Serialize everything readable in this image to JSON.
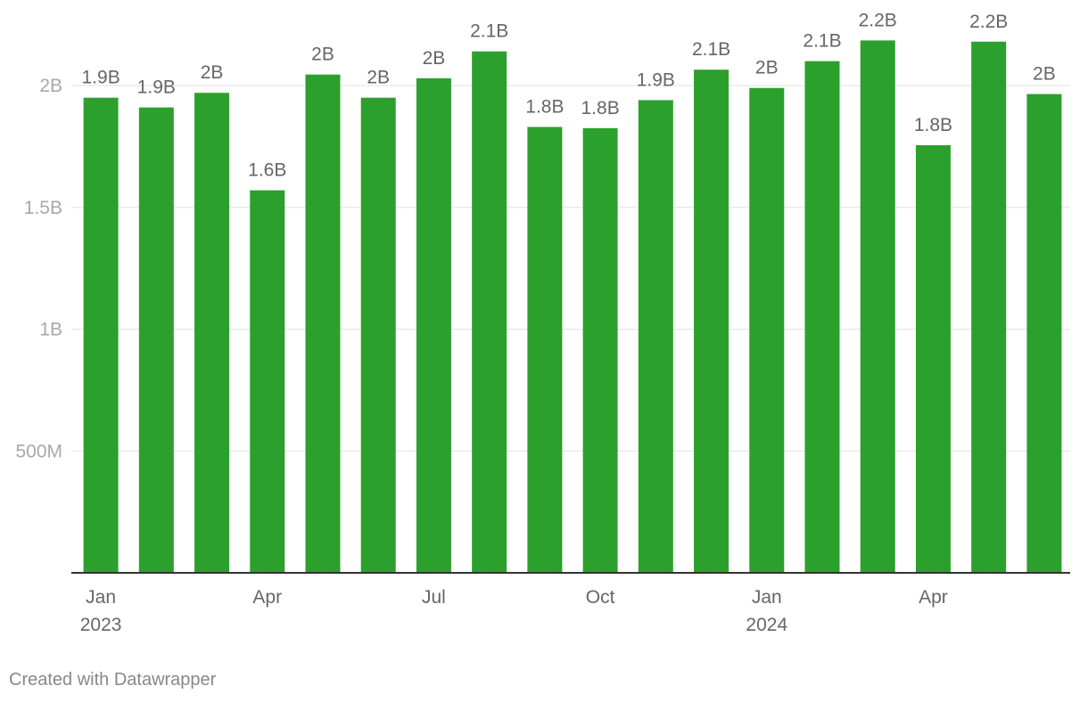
{
  "chart_data": {
    "type": "bar",
    "categories": [
      "Jan 2023",
      "Feb 2023",
      "Mar 2023",
      "Apr 2023",
      "May 2023",
      "Jun 2023",
      "Jul 2023",
      "Aug 2023",
      "Sep 2023",
      "Oct 2023",
      "Nov 2023",
      "Dec 2023",
      "Jan 2024",
      "Feb 2024",
      "Mar 2024",
      "Apr 2024",
      "May 2024",
      "Jun 2024"
    ],
    "values": [
      1950000000,
      1910000000,
      1970000000,
      1570000000,
      2045000000,
      1950000000,
      2030000000,
      2140000000,
      1830000000,
      1825000000,
      1940000000,
      2065000000,
      1990000000,
      2100000000,
      2185000000,
      1755000000,
      2180000000,
      1965000000
    ],
    "data_labels": [
      "1.9B",
      "1.9B",
      "2B",
      "1.6B",
      "2B",
      "2B",
      "2B",
      "2.1B",
      "1.8B",
      "1.8B",
      "1.9B",
      "2.1B",
      "2B",
      "2.1B",
      "2.2B",
      "1.8B",
      "2.2B",
      "2B"
    ],
    "x_tick_labels": [
      {
        "index": 0,
        "month": "Jan",
        "year": "2023"
      },
      {
        "index": 3,
        "month": "Apr",
        "year": ""
      },
      {
        "index": 6,
        "month": "Jul",
        "year": ""
      },
      {
        "index": 9,
        "month": "Oct",
        "year": ""
      },
      {
        "index": 12,
        "month": "Jan",
        "year": "2024"
      },
      {
        "index": 15,
        "month": "Apr",
        "year": ""
      }
    ],
    "y_ticks": [
      {
        "value": 500000000,
        "label": "500M"
      },
      {
        "value": 1000000000,
        "label": "1B"
      },
      {
        "value": 1500000000,
        "label": "1.5B"
      },
      {
        "value": 2000000000,
        "label": "2B"
      }
    ],
    "ylim": [
      0,
      2200000000
    ],
    "grid": true,
    "title": "",
    "xlabel": "",
    "ylabel": "",
    "bar_color": "#2ca02c"
  },
  "footer": {
    "credit": "Created with Datawrapper"
  }
}
